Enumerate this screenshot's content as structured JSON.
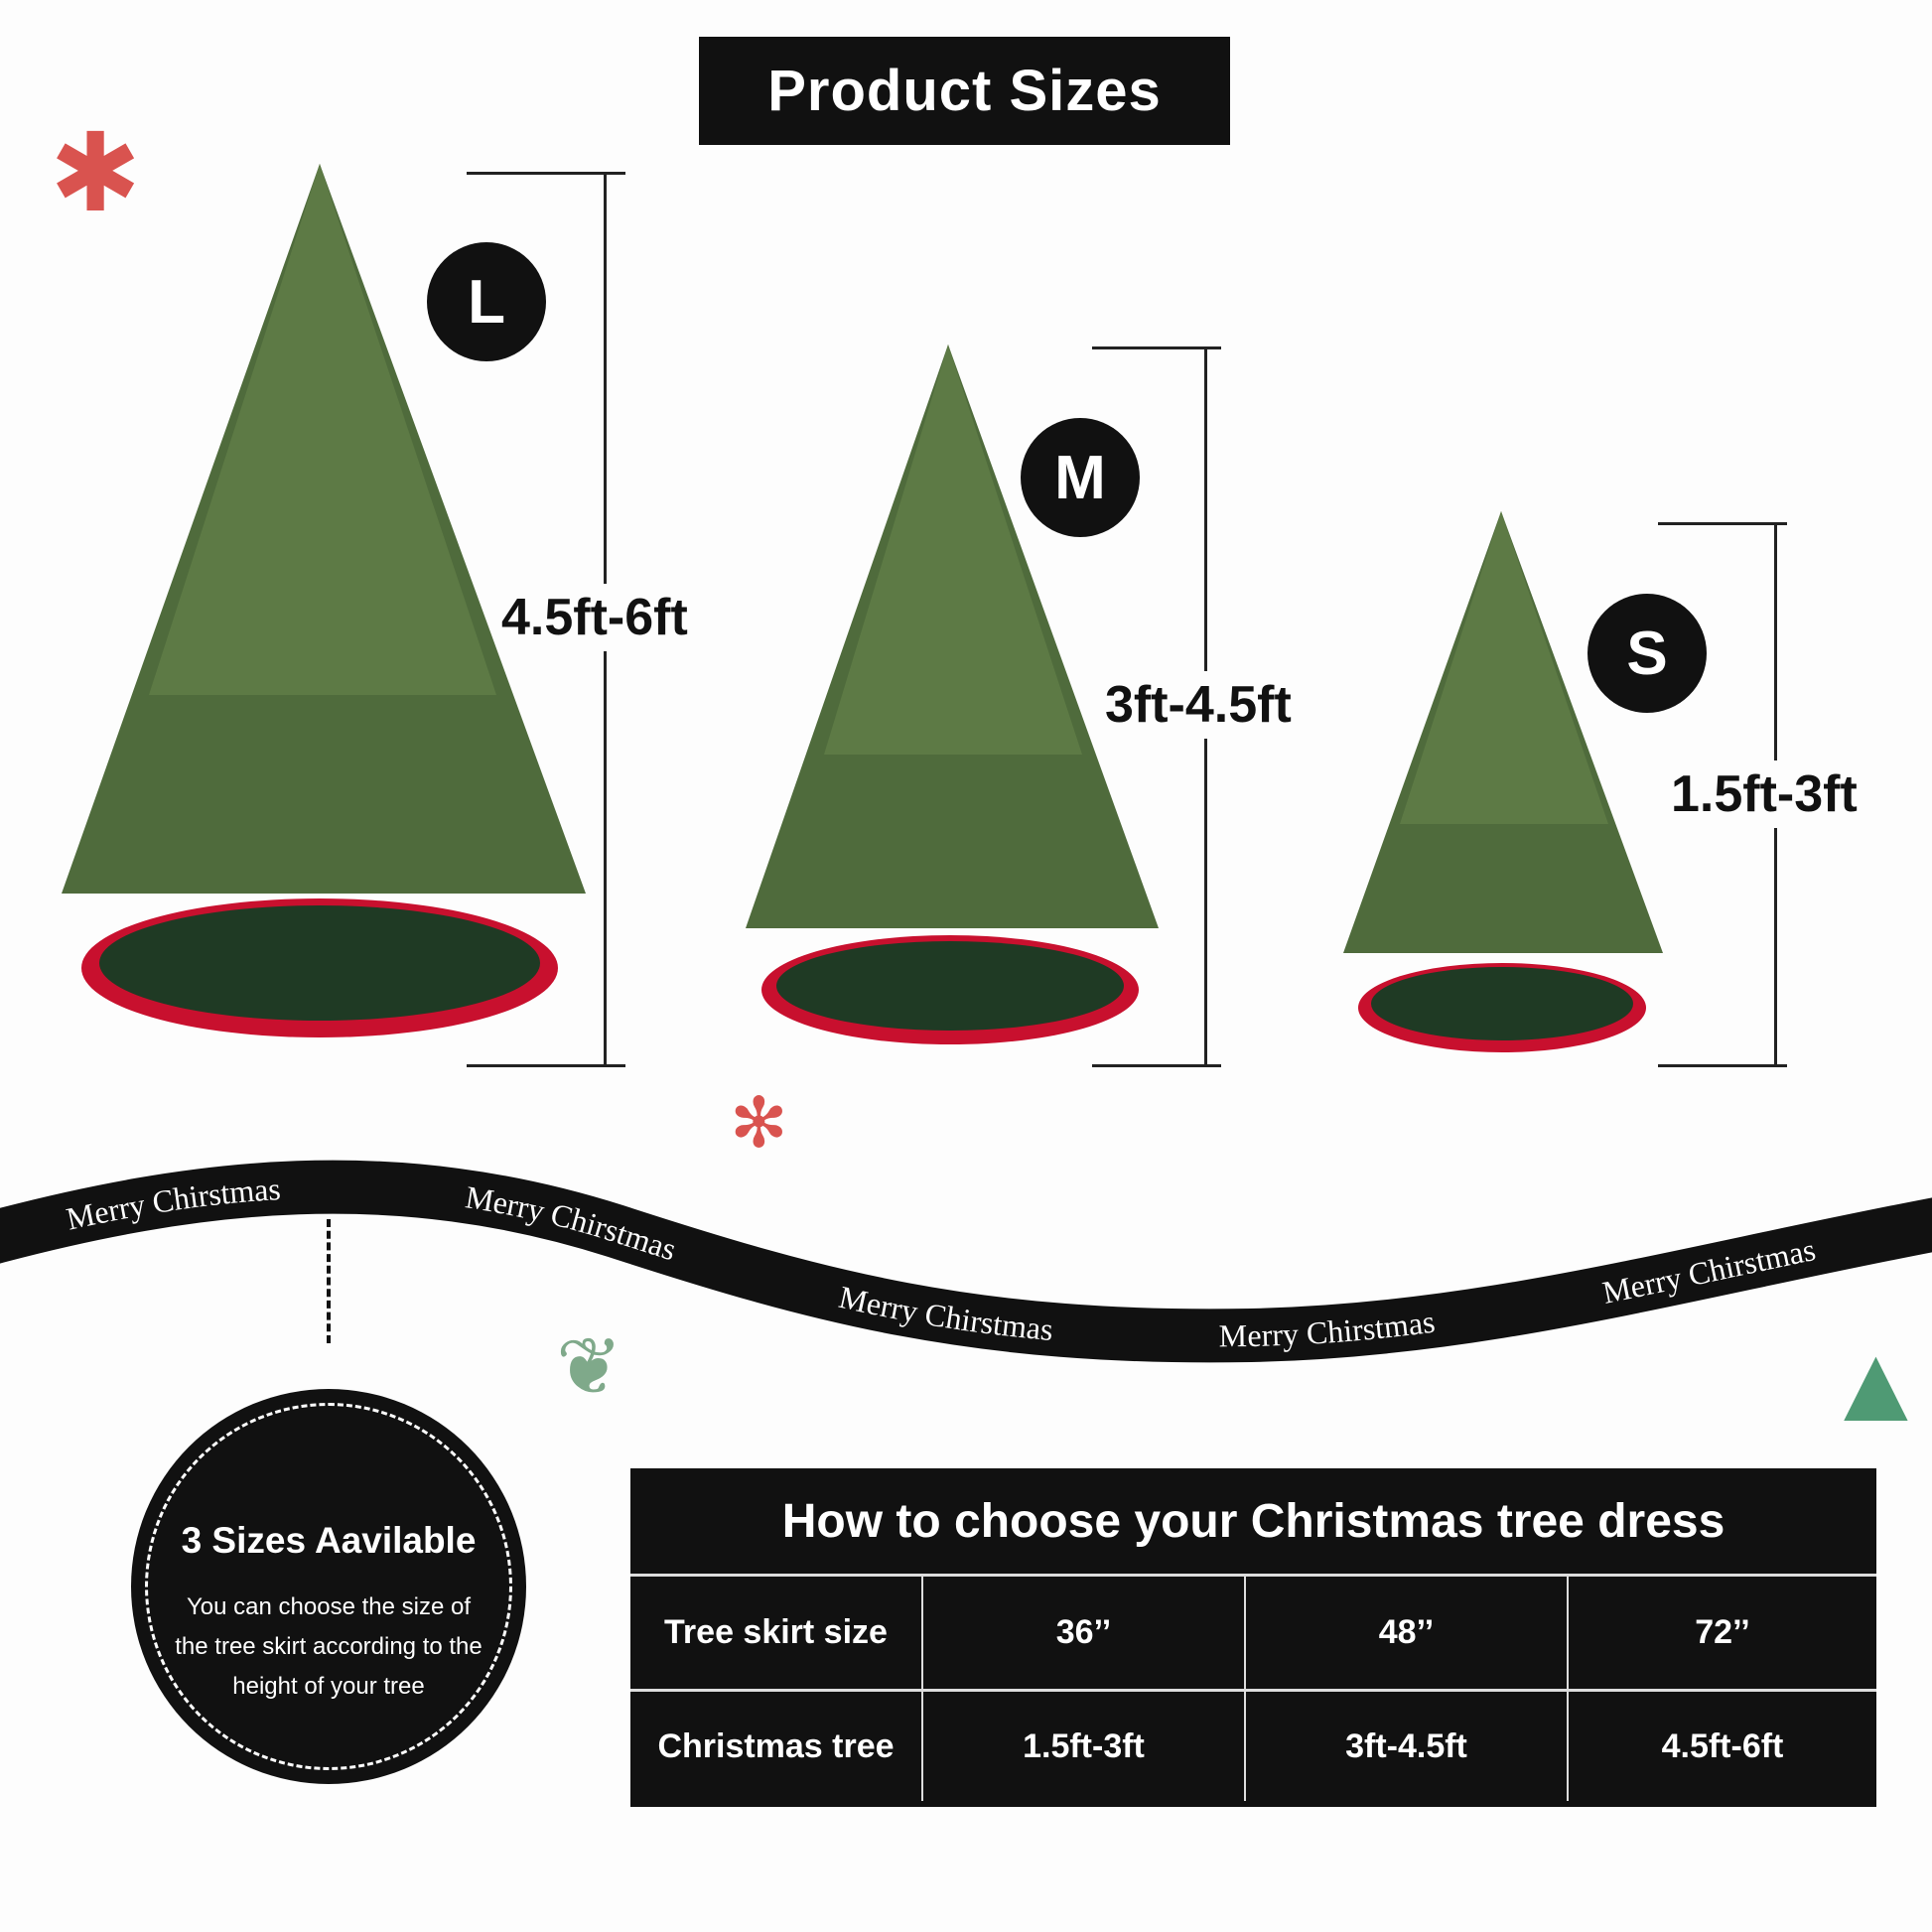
{
  "title": "Product Sizes",
  "sizes": [
    {
      "badge": "L",
      "range": "4.5ft-6ft"
    },
    {
      "badge": "M",
      "range": "3ft-4.5ft"
    },
    {
      "badge": "S",
      "range": "1.5ft-3ft"
    }
  ],
  "ribbon": {
    "text": "Merry Chirstmas"
  },
  "ornament": {
    "heading": "3 Sizes Aavilable",
    "body": "You can choose the size of the tree skirt according to the height of your tree"
  },
  "table": {
    "title": "How to choose your Christmas tree dress",
    "rows": [
      {
        "label": "Tree skirt size",
        "values": [
          "36’’",
          "48’’",
          "72’’"
        ]
      },
      {
        "label": "Christmas tree",
        "values": [
          "1.5ft-3ft",
          "3ft-4.5ft",
          "4.5ft-6ft"
        ]
      }
    ]
  },
  "colors": {
    "accent": "#111111",
    "tree": "#4f6b3c",
    "skirt": "#1f3a24",
    "skirt_trim": "#c8102e"
  }
}
